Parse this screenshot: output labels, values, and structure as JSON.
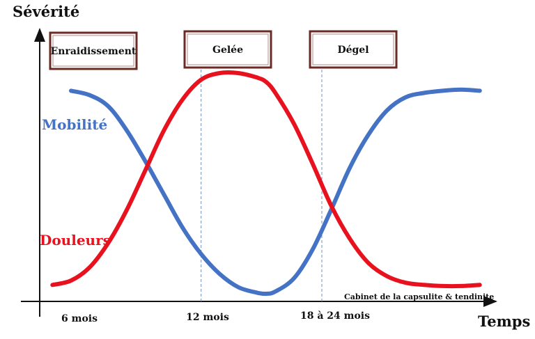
{
  "chart_data": {
    "type": "line",
    "ylabel": "Sévérité",
    "xlabel": "Temps",
    "x_ticks": [
      "6 mois",
      "12 mois",
      "18 à 24 mois"
    ],
    "phases": [
      "Enraidissement",
      "Gelée",
      "Dégel"
    ],
    "credit": "Cabinet de la capsulite & tendinite",
    "xlim": [
      0,
      24
    ],
    "ylim": [
      0,
      10
    ],
    "series": [
      {
        "name": "Mobilité",
        "color": "#4472c4",
        "x": [
          1.5,
          2.5,
          3.5,
          4.5,
          5.5,
          6.5,
          7.5,
          8.5,
          9.5,
          10.5,
          11.5,
          12.0,
          12.5,
          13.5,
          14.5,
          15.5,
          16.5,
          17.5,
          18.5,
          19.5,
          20.5,
          21.5,
          22.5,
          23.5
        ],
        "values": [
          9.2,
          9.0,
          8.5,
          7.4,
          6.0,
          4.5,
          3.0,
          1.8,
          0.9,
          0.3,
          0.05,
          0.0,
          0.1,
          0.7,
          2.0,
          3.8,
          5.7,
          7.2,
          8.3,
          8.9,
          9.1,
          9.2,
          9.25,
          9.2
        ]
      },
      {
        "name": "Douleurs",
        "color": "#e8121f",
        "x": [
          0.5,
          1.5,
          2.5,
          3.5,
          4.5,
          5.5,
          6.5,
          7.5,
          8.5,
          9.5,
          10.5,
          11.5,
          12.0,
          12.5,
          13.5,
          14.5,
          15.5,
          16.5,
          17.5,
          18.5,
          19.5,
          20.5,
          21.5,
          22.5,
          23.5
        ],
        "values": [
          0.4,
          0.6,
          1.2,
          2.3,
          3.8,
          5.6,
          7.4,
          8.8,
          9.7,
          10.0,
          10.0,
          9.8,
          9.6,
          9.1,
          7.7,
          5.9,
          4.0,
          2.5,
          1.4,
          0.8,
          0.5,
          0.4,
          0.35,
          0.35,
          0.4
        ]
      }
    ],
    "annotations": {
      "phase_boundaries": [
        8.5,
        15
      ]
    }
  }
}
